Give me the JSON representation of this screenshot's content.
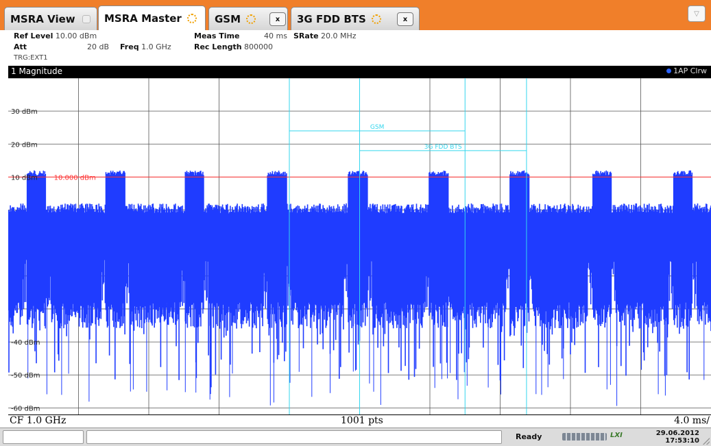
{
  "tabs": [
    {
      "label": "MSRA View",
      "icon": "window-icon"
    },
    {
      "label": "MSRA Master",
      "icon": "busy-spinner-icon",
      "active": true
    },
    {
      "label": "GSM",
      "icon": "busy-spinner-icon",
      "close": "x"
    },
    {
      "label": "3G FDD BTS",
      "icon": "busy-spinner-icon",
      "close": "x"
    }
  ],
  "menu_button": "▽",
  "settings": {
    "ref_level_label": "Ref Level",
    "ref_level_value": "10.00 dBm",
    "att_label": "Att",
    "att_value": "20 dB",
    "freq_label": "Freq",
    "freq_value": "1.0 GHz",
    "meas_time_label": "Meas Time",
    "meas_time_value": "40 ms",
    "rec_length_label": "Rec Length",
    "rec_length_value": "800000",
    "srate_label": "SRate",
    "srate_value": "20.0 MHz",
    "trigger": "TRG:EXT1"
  },
  "window": {
    "title": "1 Magnitude",
    "trace_label": "1AP Clrw",
    "trace_color": "#1f3cff"
  },
  "footer": {
    "center_freq": "CF 1.0 GHz",
    "points": "1001 pts",
    "span": "4.0 ms/"
  },
  "status": {
    "state": "Ready",
    "date": "29.06.2012",
    "time": "17:53:10",
    "lxi": "LXI"
  },
  "chart_data": {
    "type": "line",
    "xlim": [
      0,
      40
    ],
    "ylim": [
      -62,
      40
    ],
    "y_ticks": [
      {
        "value": 30,
        "label": "30 dBm"
      },
      {
        "value": 20,
        "label": "20 dBm"
      },
      {
        "value": 10,
        "label": "10 dBm"
      },
      {
        "value": -40,
        "label": "-40 dBm"
      },
      {
        "value": -50,
        "label": "-50 dBm"
      },
      {
        "value": -60,
        "label": "-60 dBm"
      }
    ],
    "ref_line": {
      "value": 10,
      "label": "10.000 dBm",
      "color": "#ff3030"
    },
    "markers": [
      {
        "label": "GSM",
        "x1": 16,
        "x2": 26,
        "y": 24,
        "color": "#33d6ee"
      },
      {
        "label": "3G FDD BTS",
        "x1": 20,
        "x2": 29.5,
        "y": 18,
        "color": "#33d6ee"
      }
    ],
    "burst_centers": [
      1.6,
      6.1,
      10.6,
      15.3,
      19.9,
      24.5,
      29.1,
      33.8,
      38.4
    ],
    "series": [
      {
        "color": "#1f3cff",
        "noise_top": 2,
        "noise_floor": -28,
        "burst_top": 12
      }
    ]
  }
}
